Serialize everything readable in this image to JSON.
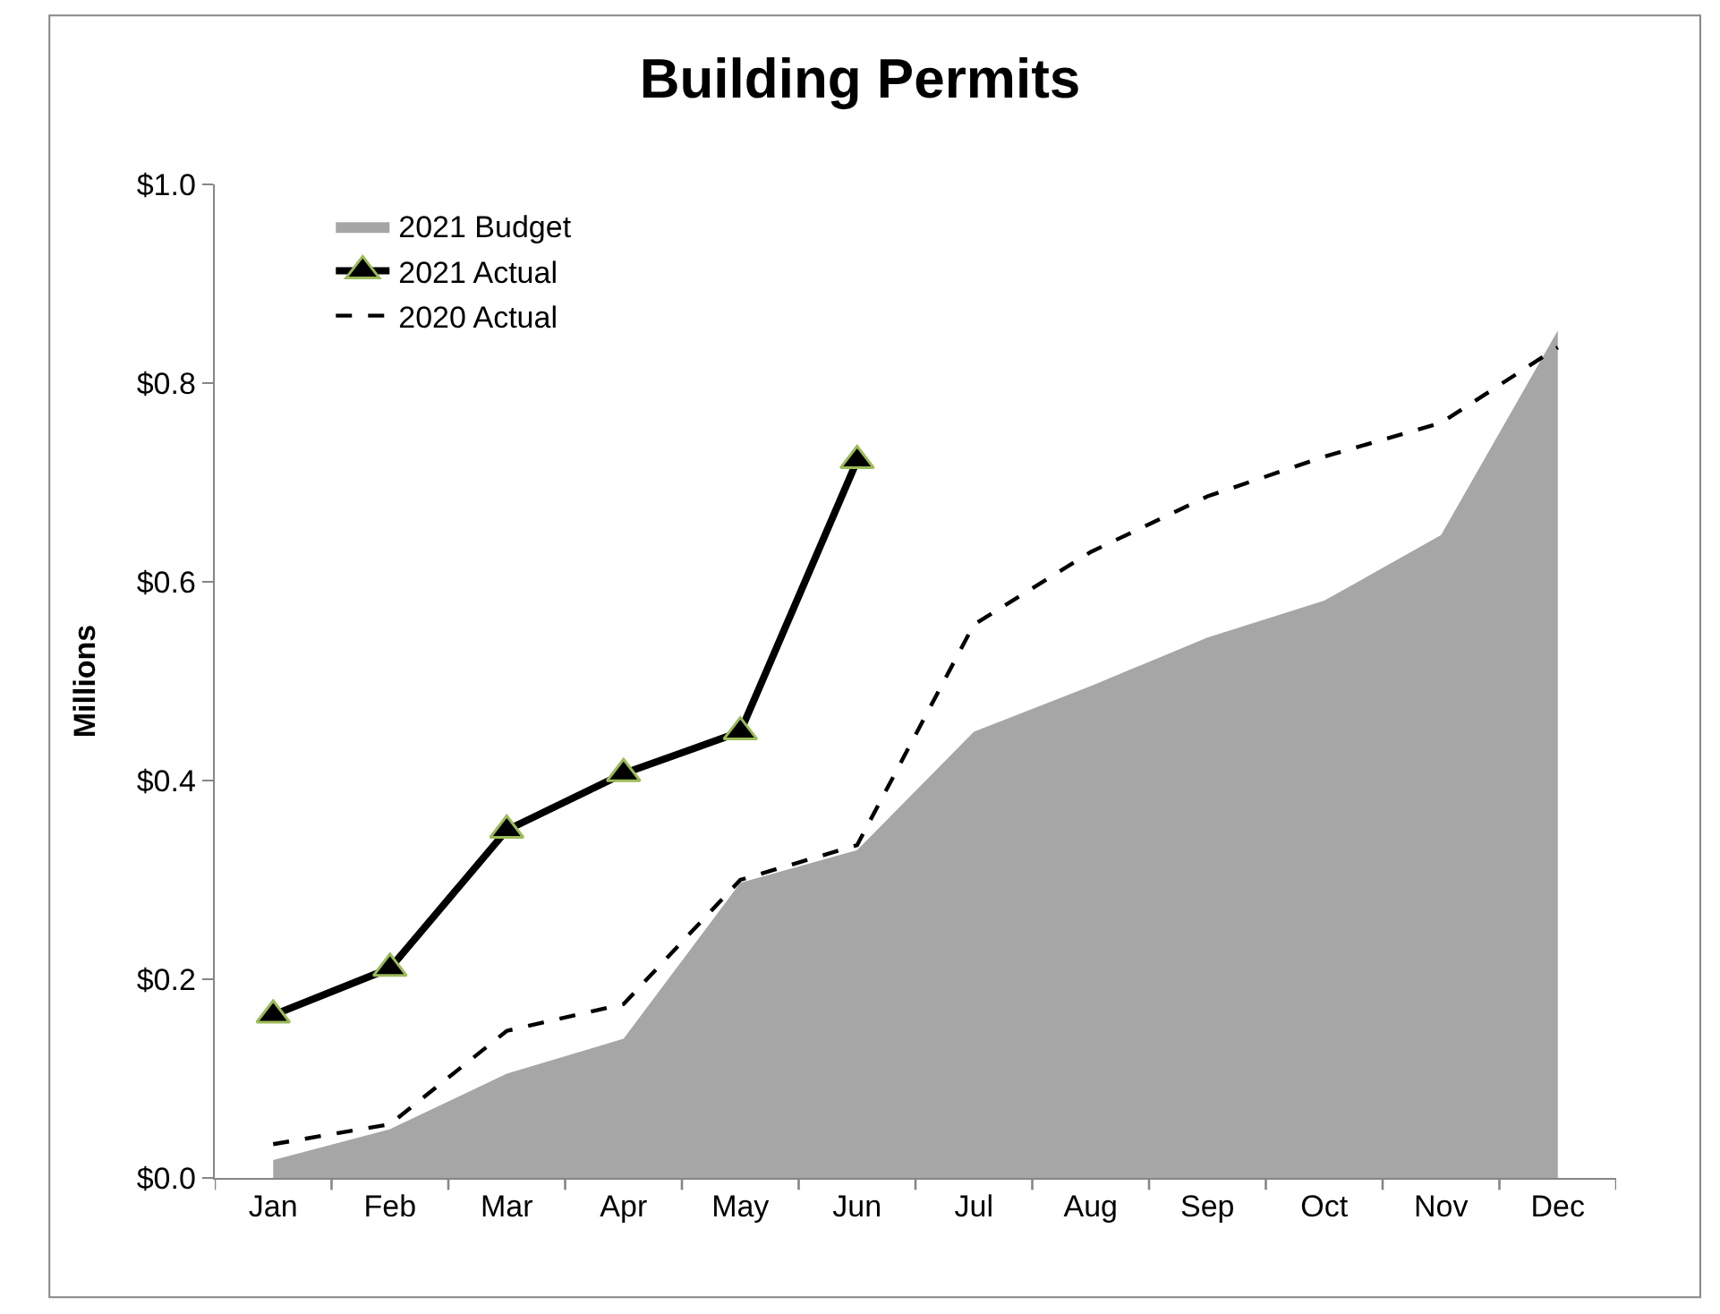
{
  "chart_data": {
    "type": "line",
    "title": "Building Permits",
    "ylabel": "Millions",
    "categories": [
      "Jan",
      "Feb",
      "Mar",
      "Apr",
      "May",
      "Jun",
      "Jul",
      "Aug",
      "Sep",
      "Oct",
      "Nov",
      "Dec"
    ],
    "series": [
      {
        "name": "2021 Budget",
        "type": "area",
        "color": "#a6a6a6",
        "values": [
          0.018,
          0.049,
          0.105,
          0.14,
          0.297,
          0.33,
          0.449,
          0.495,
          0.544,
          0.581,
          0.647,
          0.853
        ]
      },
      {
        "name": "2021 Actual",
        "color": "#000000",
        "marker": "triangle",
        "line_style": "solid",
        "values": [
          0.164,
          0.211,
          0.35,
          0.407,
          0.449,
          0.722,
          null,
          null,
          null,
          null,
          null,
          null
        ]
      },
      {
        "name": "2020 Actual",
        "color": "#000000",
        "marker": "none",
        "line_style": "dashed",
        "values": [
          0.034,
          0.054,
          0.148,
          0.175,
          0.3,
          0.335,
          0.557,
          0.63,
          0.686,
          0.726,
          0.76,
          0.836
        ]
      }
    ],
    "ylim": [
      0,
      1.0
    ],
    "yticks": [
      {
        "value": 0,
        "label": "$0.0"
      },
      {
        "value": 0.2,
        "label": "$0.2"
      },
      {
        "value": 0.4,
        "label": "$0.4"
      },
      {
        "value": 0.6,
        "label": "$0.6"
      },
      {
        "value": 0.8,
        "label": "$0.8"
      },
      {
        "value": 1.0,
        "label": "$1.0"
      }
    ],
    "legend": "top left"
  }
}
